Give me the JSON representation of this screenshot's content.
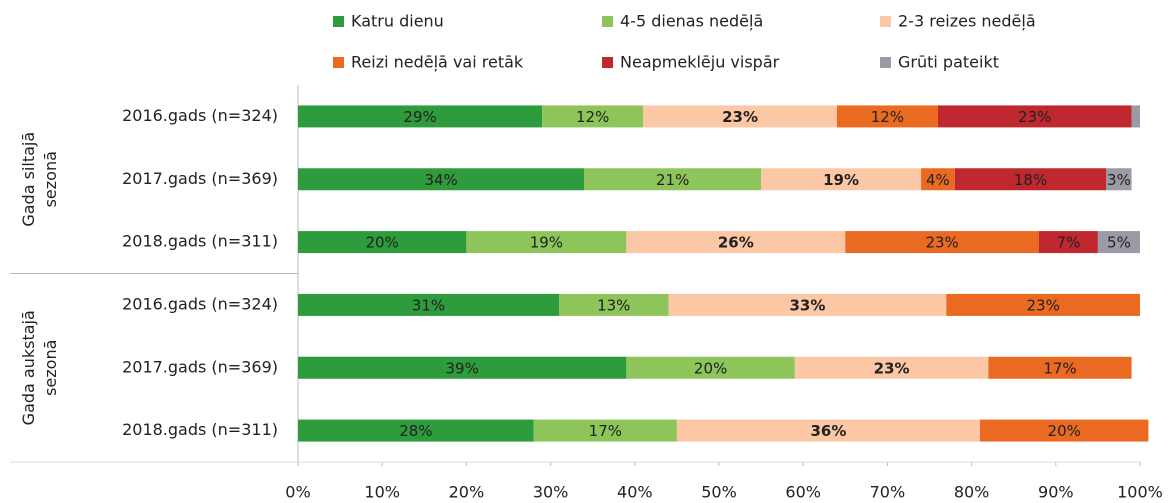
{
  "chart_data": {
    "type": "stacked-barh",
    "categories": [
      "2016.gads (n=324)",
      "2017.gads (n=369)",
      "2018.gads (n=311)",
      "2016.gads (n=324)",
      "2017.gads (n=369)",
      "2018.gads (n=311)"
    ],
    "groups": [
      {
        "lines": [
          "Gada  siltajā",
          "sezonā"
        ],
        "size": 3
      },
      {
        "lines": [
          "Gada  aukstajā",
          "sezonā"
        ],
        "size": 3
      }
    ],
    "series": [
      {
        "name": "Katru dienu",
        "color": "#2e9b3c",
        "values": [
          29,
          34,
          20,
          31,
          39,
          28
        ],
        "value_labels": [
          "29%",
          "34%",
          "20%",
          "31%",
          "39%",
          "28%"
        ]
      },
      {
        "name": "4-5 dienas nedēļā",
        "color": "#8ec55a",
        "values": [
          12,
          21,
          19,
          13,
          20,
          17
        ],
        "value_labels": [
          "12%",
          "21%",
          "19%",
          "13%",
          "20%",
          "17%"
        ]
      },
      {
        "name": "2-3 reizes nedēļā",
        "color": "#fbc7a4",
        "values": [
          23,
          19,
          26,
          33,
          23,
          36
        ],
        "value_labels": [
          "23%",
          "19%",
          "26%",
          "33%",
          "23%",
          "36%"
        ]
      },
      {
        "name": "Reizi nedēļā vai retāk",
        "color": "#ea6a22",
        "values": [
          12,
          4,
          23,
          23,
          17,
          20
        ],
        "value_labels": [
          "12%",
          "4%",
          "23%",
          "23%",
          "17%",
          "20%"
        ]
      },
      {
        "name": "Neapmeklēju vispār",
        "color": "#be282e",
        "values": [
          23,
          18,
          7,
          null,
          null,
          null
        ],
        "value_labels": [
          "23%",
          "18%",
          "7%",
          null,
          null,
          null
        ]
      },
      {
        "name": "Grūti pateikt",
        "color": "#9a9ba5",
        "values": [
          1,
          3,
          5,
          null,
          null,
          null
        ],
        "value_labels": [
          null,
          "3%",
          "5%",
          null,
          null,
          null
        ]
      }
    ],
    "xlim": [
      0,
      100
    ],
    "xticks": [
      {
        "value": 0,
        "label": "0%"
      },
      {
        "value": 10,
        "label": "10%"
      },
      {
        "value": 20,
        "label": "20%"
      },
      {
        "value": 30,
        "label": "30%"
      },
      {
        "value": 40,
        "label": "40%"
      },
      {
        "value": 50,
        "label": "50%"
      },
      {
        "value": 60,
        "label": "60%"
      },
      {
        "value": 70,
        "label": "70%"
      },
      {
        "value": 80,
        "label": "80%"
      },
      {
        "value": 90,
        "label": "90%"
      },
      {
        "value": 100,
        "label": "100%"
      }
    ]
  }
}
